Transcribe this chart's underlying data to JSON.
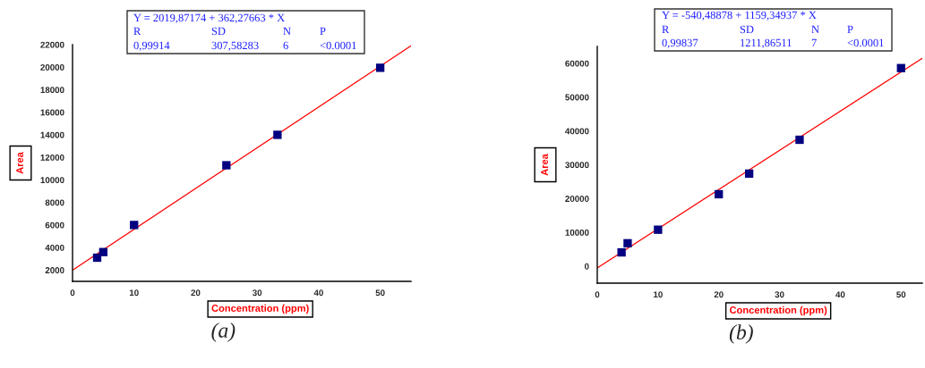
{
  "chart_data": [
    {
      "type": "scatter",
      "title": "(a)",
      "xlabel": "Concentration (ppm)",
      "ylabel": "Area",
      "annotations": [
        "Y = 2019,87174 + 362,27663 * X",
        "R",
        "SD",
        "N",
        "P",
        "0,99914",
        "307,58283",
        "6",
        "<0.0001"
      ],
      "xlim": [
        0,
        55
      ],
      "ylim": [
        1000,
        22000
      ],
      "xticks": [
        0,
        10,
        20,
        30,
        40,
        50
      ],
      "yticks": [
        2000,
        4000,
        6000,
        8000,
        10000,
        12000,
        14000,
        16000,
        18000,
        20000,
        22000
      ],
      "series": [
        {
          "marker": "square",
          "color": "#000080",
          "x": [
            4,
            5,
            10,
            25,
            33.3,
            50
          ],
          "values": [
            3100,
            3600,
            6000,
            11300,
            14000,
            19950
          ]
        },
        {
          "type": "line",
          "marker": "none",
          "color": "#ff0000",
          "x": [
            0,
            55
          ],
          "values": [
            2000,
            21900
          ]
        }
      ]
    },
    {
      "type": "scatter",
      "title": "(b)",
      "xlabel": "Concentration (ppm)",
      "ylabel": "Area",
      "annotations": [
        "Y = -540,48878 + 1159,34937 * X",
        "R",
        "SD",
        "N",
        "P",
        "0,99837",
        "1211,86511",
        "7",
        "<0.0001"
      ],
      "xlim": [
        0,
        53.5
      ],
      "ylim": [
        -5000,
        65000
      ],
      "xticks": [
        0,
        10,
        20,
        30,
        40,
        50
      ],
      "yticks": [
        0,
        10000,
        20000,
        30000,
        40000,
        50000,
        60000
      ],
      "series": [
        {
          "marker": "square",
          "color": "#000080",
          "x": [
            4,
            5,
            10,
            20,
            25,
            33.3,
            50
          ],
          "values": [
            4100,
            6800,
            10800,
            21300,
            27400,
            37400,
            58600
          ]
        },
        {
          "type": "line",
          "marker": "none",
          "color": "#ff0000",
          "x": [
            0,
            53.5
          ],
          "values": [
            -500,
            61500
          ]
        }
      ]
    }
  ]
}
